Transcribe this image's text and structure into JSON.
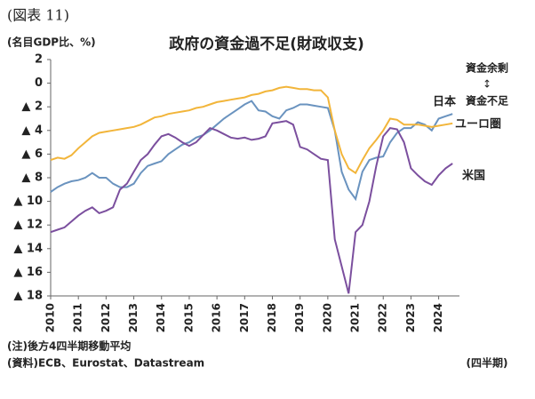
{
  "figure_label": "(図表 11)",
  "chart_data": {
    "type": "line",
    "title": "政府の資金過不足(財政収支)",
    "y_label": "(名目GDP比、%)",
    "x": [
      2010,
      2010.25,
      2010.5,
      2010.75,
      2011,
      2011.25,
      2011.5,
      2011.75,
      2012,
      2012.25,
      2012.5,
      2012.75,
      2013,
      2013.25,
      2013.5,
      2013.75,
      2014,
      2014.25,
      2014.5,
      2014.75,
      2015,
      2015.25,
      2015.5,
      2015.75,
      2016,
      2016.25,
      2016.5,
      2016.75,
      2017,
      2017.25,
      2017.5,
      2017.75,
      2018,
      2018.25,
      2018.5,
      2018.75,
      2019,
      2019.25,
      2019.5,
      2019.75,
      2020,
      2020.25,
      2020.5,
      2020.75,
      2021,
      2021.25,
      2021.5,
      2021.75,
      2022,
      2022.25,
      2022.5,
      2022.75,
      2023,
      2023.25,
      2023.5,
      2023.75,
      2024,
      2024.25,
      2024.5
    ],
    "series": [
      {
        "name": "日本",
        "color": "#6a93bf",
        "values": [
          -9.2,
          -8.8,
          -8.5,
          -8.3,
          -8.2,
          -8.0,
          -7.6,
          -8.0,
          -8.0,
          -8.5,
          -8.8,
          -8.8,
          -8.5,
          -7.6,
          -7.0,
          -6.8,
          -6.6,
          -6.0,
          -5.6,
          -5.2,
          -5.0,
          -4.6,
          -4.4,
          -4.0,
          -3.5,
          -3.0,
          -2.6,
          -2.2,
          -1.8,
          -1.5,
          -2.3,
          -2.4,
          -2.8,
          -3.0,
          -2.3,
          -2.1,
          -1.8,
          -1.8,
          -1.9,
          -2.0,
          -2.1,
          -4.0,
          -7.5,
          -9.0,
          -9.8,
          -7.5,
          -6.5,
          -6.3,
          -6.2,
          -5.0,
          -4.2,
          -3.8,
          -3.8,
          -3.3,
          -3.5,
          -4.0,
          -3.0,
          -2.8,
          -2.6
        ]
      },
      {
        "name": "ユーロ圏",
        "color": "#f2b53a",
        "values": [
          -6.5,
          -6.3,
          -6.4,
          -6.1,
          -5.5,
          -5.0,
          -4.5,
          -4.2,
          -4.1,
          -4.0,
          -3.9,
          -3.8,
          -3.7,
          -3.5,
          -3.2,
          -2.9,
          -2.8,
          -2.6,
          -2.5,
          -2.4,
          -2.3,
          -2.1,
          -2.0,
          -1.8,
          -1.6,
          -1.5,
          -1.4,
          -1.3,
          -1.2,
          -1.0,
          -0.9,
          -0.7,
          -0.6,
          -0.4,
          -0.3,
          -0.4,
          -0.5,
          -0.5,
          -0.6,
          -0.6,
          -1.2,
          -4.0,
          -6.0,
          -7.2,
          -7.6,
          -6.5,
          -5.5,
          -4.8,
          -4.0,
          -3.0,
          -3.1,
          -3.5,
          -3.5,
          -3.5,
          -3.6,
          -3.7,
          -3.6,
          -3.5,
          -3.4
        ]
      },
      {
        "name": "米国",
        "color": "#7b4f9e",
        "values": [
          -12.6,
          -12.4,
          -12.2,
          -11.7,
          -11.2,
          -10.8,
          -10.5,
          -11.0,
          -10.8,
          -10.5,
          -9.0,
          -8.5,
          -7.5,
          -6.5,
          -6.0,
          -5.2,
          -4.5,
          -4.3,
          -4.6,
          -5.0,
          -5.3,
          -5.0,
          -4.4,
          -3.8,
          -4.0,
          -4.3,
          -4.6,
          -4.7,
          -4.6,
          -4.8,
          -4.7,
          -4.5,
          -3.4,
          -3.3,
          -3.2,
          -3.5,
          -5.4,
          -5.6,
          -6.0,
          -6.4,
          -6.5,
          -13.2,
          -15.5,
          -17.8,
          -12.6,
          -12.0,
          -10.0,
          -7.0,
          -4.5,
          -3.8,
          -3.9,
          -5.0,
          -7.2,
          -7.8,
          -8.3,
          -8.6,
          -7.8,
          -7.2,
          -6.8
        ]
      }
    ],
    "xlim": [
      2010,
      2024.75
    ],
    "xticks": [
      2010,
      2011,
      2012,
      2013,
      2014,
      2015,
      2016,
      2017,
      2018,
      2019,
      2020,
      2021,
      2022,
      2023,
      2024
    ],
    "ylim": [
      -18,
      2
    ],
    "yticks": [
      {
        "value": -18,
        "label": "▲ 18"
      },
      {
        "value": -16,
        "label": "▲ 16"
      },
      {
        "value": -14,
        "label": "▲ 14"
      },
      {
        "value": -12,
        "label": "▲ 12"
      },
      {
        "value": -10,
        "label": "▲ 10"
      },
      {
        "value": -8,
        "label": "▲ 8"
      },
      {
        "value": -6,
        "label": "▲ 6"
      },
      {
        "value": -4,
        "label": "▲ 4"
      },
      {
        "value": -2,
        "label": "▲ 2"
      },
      0,
      2
    ],
    "annotations": [
      "資金余剰",
      "↕",
      "資金不足"
    ],
    "x_unit": "(四半期)"
  },
  "notes": [
    "(注)後方4四半期移動平均",
    "(資料)ECB、Eurostat、Datastream"
  ]
}
